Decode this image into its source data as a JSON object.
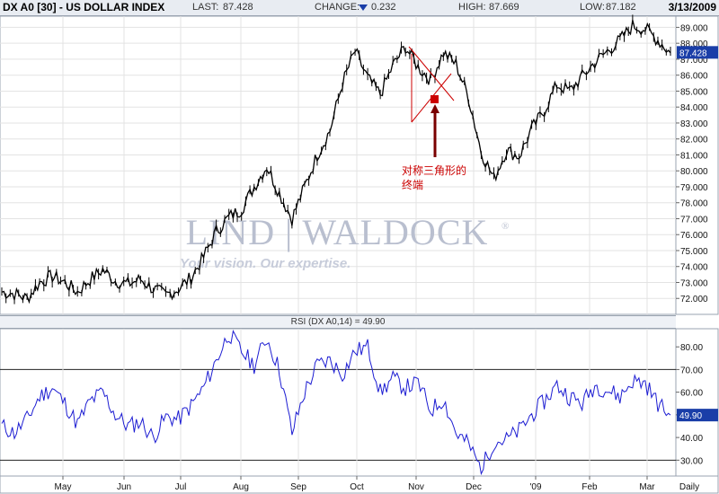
{
  "header": {
    "symbol": "DX A0 [30] - US DOLLAR INDEX",
    "last_label": "LAST:",
    "last_value": "87.428",
    "change_label": "CHANGE:",
    "change_value": "0.232",
    "change_direction_icon": "down-arrow-icon",
    "high_label": "HIGH:",
    "high_value": "87.669",
    "low_label": "LOW:",
    "low_value": "87.182",
    "date": "3/13/2009"
  },
  "watermark": {
    "brand": "LIND | WALDOCK",
    "registered": "®",
    "tagline": "Your vision. Our expertise."
  },
  "annotation": {
    "line1": "对称三角形的",
    "line2": "终端"
  },
  "rsi_panel": {
    "title": "RSI (DX A0,14) = 49.90",
    "last_value": "49.90"
  },
  "colors": {
    "price": "#000000",
    "rsi": "#1c1cd2",
    "annotation": "#cc0000",
    "last_badge": "#1a3ea8",
    "grid": "#e3e3e3",
    "watermark": "#b9bfcf"
  },
  "chart_data": [
    {
      "type": "line",
      "title": "DX A0 [30] - US DOLLAR INDEX",
      "interval": "Daily",
      "x_tick_labels": [
        "May",
        "Jun",
        "Jul",
        "Aug",
        "Sep",
        "Oct",
        "Nov",
        "Dec",
        "'09",
        "Feb",
        "Mar",
        "Daily"
      ],
      "y_tick_labels": [
        "72.000",
        "73.000",
        "74.000",
        "75.000",
        "76.000",
        "77.000",
        "78.000",
        "79.000",
        "80.000",
        "81.000",
        "82.000",
        "83.000",
        "84.000",
        "85.000",
        "86.000",
        "87.000",
        "88.000",
        "89.000"
      ],
      "ylim": [
        71,
        89.7
      ],
      "last_value": "87.428",
      "series": [
        {
          "x": [
            "Apr 16",
            "Apr 23",
            "Apr 30",
            "May 7",
            "May 14",
            "May 21",
            "May 28",
            "Jun 4",
            "Jun 11",
            "Jun 18",
            "Jun 25",
            "Jul 2",
            "Jul 9",
            "Jul 16",
            "Jul 23",
            "Jul 30",
            "Aug 6",
            "Aug 13",
            "Aug 20",
            "Aug 27",
            "Sep 3",
            "Sep 10",
            "Sep 17",
            "Sep 24",
            "Oct 1",
            "Oct 8",
            "Oct 15",
            "Oct 22",
            "Oct 27",
            "Oct 31",
            "Nov 5",
            "Nov 10",
            "Nov 14",
            "Nov 20",
            "Nov 25",
            "Dec 1",
            "Dec 5",
            "Dec 10",
            "Dec 15",
            "Dec 18",
            "Dec 24",
            "Dec 31",
            "Jan 8",
            "Jan 15",
            "Jan 22",
            "Jan 29",
            "Feb 5",
            "Feb 12",
            "Feb 19",
            "Feb 26",
            "Mar 3",
            "Mar 6",
            "Mar 10",
            "Mar 13"
          ],
          "values": [
            72.4,
            72.3,
            72.0,
            73.0,
            73.4,
            73.0,
            72.4,
            73.2,
            73.8,
            73.1,
            72.9,
            73.2,
            72.6,
            72.2,
            72.6,
            73.3,
            74.6,
            76.2,
            77.1,
            77.6,
            79.0,
            80.3,
            78.6,
            77.0,
            79.0,
            81.0,
            82.5,
            85.5,
            87.5,
            85.8,
            84.8,
            86.6,
            87.8,
            86.5,
            85.7,
            87.4,
            86.7,
            84.6,
            81.2,
            79.5,
            81.3,
            80.9,
            82.6,
            83.8,
            85.4,
            85.0,
            85.9,
            86.8,
            87.5,
            88.2,
            89.1,
            88.9,
            88.2,
            87.4
          ]
        }
      ]
    },
    {
      "type": "line",
      "title": "RSI (DX A0,14) = 49.90",
      "x_tick_labels": [
        "May",
        "Jun",
        "Jul",
        "Aug",
        "Sep",
        "Oct",
        "Nov",
        "Dec",
        "'09",
        "Feb",
        "Mar",
        "Daily"
      ],
      "y_tick_labels": [
        "30.00",
        "40.00",
        "50.00",
        "60.00",
        "70.00",
        "80.00"
      ],
      "reference_lines": [
        30,
        70
      ],
      "ylim": [
        23,
        88
      ],
      "last_value": "49.90",
      "series": [
        {
          "x": [
            "Apr 16",
            "Apr 23",
            "Apr 30",
            "May 7",
            "May 14",
            "May 21",
            "May 28",
            "Jun 4",
            "Jun 11",
            "Jun 18",
            "Jun 25",
            "Jul 2",
            "Jul 9",
            "Jul 16",
            "Jul 23",
            "Jul 30",
            "Aug 6",
            "Aug 13",
            "Aug 20",
            "Aug 27",
            "Sep 3",
            "Sep 10",
            "Sep 17",
            "Sep 24",
            "Oct 1",
            "Oct 8",
            "Oct 15",
            "Oct 22",
            "Oct 27",
            "Oct 31",
            "Nov 5",
            "Nov 10",
            "Nov 14",
            "Nov 20",
            "Nov 25",
            "Dec 1",
            "Dec 5",
            "Dec 10",
            "Dec 15",
            "Dec 18",
            "Dec 24",
            "Dec 31",
            "Jan 8",
            "Jan 15",
            "Jan 22",
            "Jan 29",
            "Feb 5",
            "Feb 12",
            "Feb 19",
            "Feb 26",
            "Mar 3",
            "Mar 6",
            "Mar 10",
            "Mar 13"
          ],
          "values": [
            45,
            42,
            48,
            58,
            62,
            55,
            46,
            56,
            60,
            50,
            45,
            47,
            40,
            49,
            48,
            54,
            62,
            74,
            86,
            78,
            72,
            84,
            70,
            42,
            60,
            72,
            74,
            68,
            78,
            80,
            60,
            66,
            62,
            64,
            52,
            57,
            42,
            37,
            26,
            38,
            39,
            43,
            50,
            56,
            63,
            58,
            55,
            63,
            61,
            58,
            65,
            64,
            55,
            49.9
          ]
        }
      ]
    }
  ]
}
